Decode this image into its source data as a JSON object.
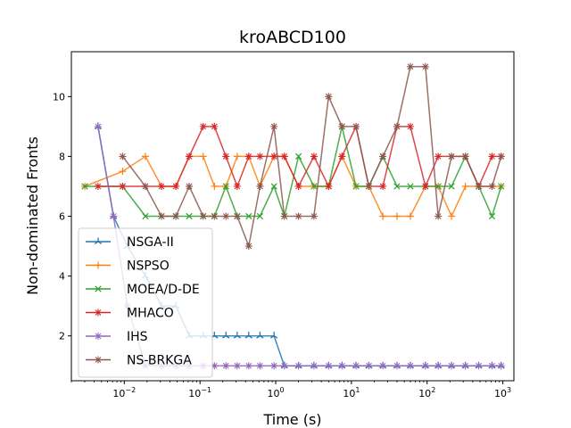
{
  "chart_data": {
    "type": "line",
    "title": "kroABCD100",
    "xlabel": "Time (s)",
    "ylabel": "Non-dominated Fronts",
    "xscale": "log",
    "xlim": [
      0.002,
      1400
    ],
    "ylim": [
      0.5,
      11.5
    ],
    "grid": false,
    "legend_position": "lower-left",
    "x_ticks": [
      {
        "v": 0.01,
        "b": "10",
        "e": "−2"
      },
      {
        "v": 0.1,
        "b": "10",
        "e": "−1"
      },
      {
        "v": 1,
        "b": "10",
        "e": "0"
      },
      {
        "v": 10,
        "b": "10",
        "e": "1"
      },
      {
        "v": 100,
        "b": "10",
        "e": "2"
      },
      {
        "v": 1000,
        "b": "10",
        "e": "3"
      }
    ],
    "y_ticks": [
      2,
      4,
      6,
      8,
      10
    ],
    "series": [
      {
        "name": "NSGA-II",
        "color": "#1f77b4",
        "marker": "tri",
        "x": [
          0.0045,
          0.0072,
          0.011,
          0.019,
          0.031,
          0.048,
          0.072,
          0.11,
          0.155,
          0.22,
          0.31,
          0.44,
          0.62,
          0.95,
          1.3,
          2.0,
          3.2,
          5.0,
          7.5,
          11.5,
          17,
          26,
          40,
          60,
          95,
          140,
          210,
          320,
          480,
          720,
          950
        ],
        "y": [
          9,
          6,
          5,
          4,
          3,
          3,
          2,
          2,
          2,
          2,
          2,
          2,
          2,
          2,
          1,
          1,
          1,
          1,
          1,
          1,
          1,
          1,
          1,
          1,
          1,
          1,
          1,
          1,
          1,
          1,
          1
        ]
      },
      {
        "name": "NSPSO",
        "color": "#ff7f0e",
        "marker": "plus",
        "x": [
          0.003,
          0.0095,
          0.019,
          0.031,
          0.048,
          0.072,
          0.11,
          0.155,
          0.22,
          0.31,
          0.44,
          0.62,
          0.95,
          1.3,
          2.0,
          3.2,
          5.0,
          7.5,
          11.5,
          17,
          26,
          40,
          60,
          95,
          140,
          210,
          320,
          480,
          720,
          950
        ],
        "y": [
          7,
          7.5,
          8,
          7,
          7,
          8,
          8,
          7,
          7,
          8,
          8,
          7,
          8,
          8,
          7,
          7,
          7,
          8,
          7,
          7,
          6,
          6,
          6,
          7,
          7,
          6,
          7,
          7,
          7,
          7
        ]
      },
      {
        "name": "MOEA/D-DE",
        "color": "#2ca02c",
        "marker": "x",
        "x": [
          0.003,
          0.0095,
          0.019,
          0.031,
          0.048,
          0.072,
          0.11,
          0.155,
          0.22,
          0.31,
          0.44,
          0.62,
          0.95,
          1.3,
          2.0,
          3.2,
          5.0,
          7.5,
          11.5,
          17,
          26,
          40,
          60,
          95,
          140,
          210,
          320,
          480,
          720,
          950
        ],
        "y": [
          7,
          7,
          6,
          6,
          6,
          6,
          6,
          6,
          7,
          6,
          6,
          6,
          7,
          6,
          8,
          7,
          7,
          9,
          7,
          7,
          8,
          7,
          7,
          7,
          7,
          7,
          8,
          7,
          6,
          7
        ]
      },
      {
        "name": "MHACO",
        "color": "#d62728",
        "marker": "star",
        "x": [
          0.0045,
          0.0095,
          0.019,
          0.031,
          0.048,
          0.072,
          0.11,
          0.155,
          0.22,
          0.31,
          0.44,
          0.62,
          0.95,
          1.3,
          2.0,
          3.2,
          5.0,
          7.5,
          11.5,
          17,
          26,
          40,
          60,
          95,
          140,
          210,
          320,
          480,
          720,
          950
        ],
        "y": [
          7,
          7,
          7,
          7,
          7,
          8,
          9,
          9,
          8,
          7,
          8,
          8,
          8,
          8,
          7,
          8,
          7,
          8,
          9,
          7,
          7,
          9,
          9,
          7,
          8,
          8,
          8,
          7,
          8,
          8
        ]
      },
      {
        "name": "IHS",
        "color": "#9467bd",
        "marker": "star",
        "x": [
          0.0045,
          0.0072,
          0.011,
          0.019,
          0.031,
          0.048,
          0.072,
          0.11,
          0.155,
          0.22,
          0.31,
          0.44,
          0.62,
          0.95,
          1.3,
          2.0,
          3.2,
          5.0,
          7.5,
          11.5,
          17,
          26,
          40,
          60,
          95,
          140,
          210,
          320,
          480,
          720,
          950
        ],
        "y": [
          9,
          6,
          3,
          1,
          1,
          1,
          1,
          1,
          1,
          1,
          1,
          1,
          1,
          1,
          1,
          1,
          1,
          1,
          1,
          1,
          1,
          1,
          1,
          1,
          1,
          1,
          1,
          1,
          1,
          1,
          1
        ]
      },
      {
        "name": "NS-BRKGA",
        "color": "#8c564b",
        "marker": "star",
        "x": [
          0.0095,
          0.019,
          0.031,
          0.048,
          0.072,
          0.11,
          0.155,
          0.22,
          0.31,
          0.44,
          0.62,
          0.95,
          1.3,
          2.0,
          3.2,
          5.0,
          7.5,
          11.5,
          17,
          26,
          40,
          60,
          95,
          140,
          210,
          320,
          480,
          720,
          950
        ],
        "y": [
          8,
          7,
          6,
          6,
          7,
          6,
          6,
          6,
          6,
          5,
          7,
          9,
          6,
          6,
          6,
          10,
          9,
          9,
          7,
          8,
          9,
          11,
          11,
          6,
          8,
          8,
          7,
          7,
          8
        ]
      }
    ]
  }
}
